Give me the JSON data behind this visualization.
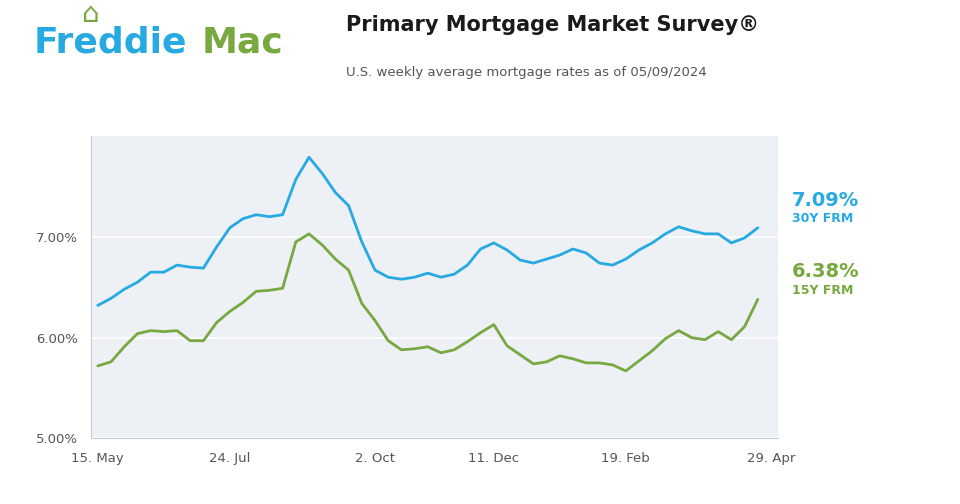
{
  "title": "Primary Mortgage Market Survey®",
  "subtitle": "U.S. weekly average mortgage rates as of 05/09/2024",
  "line_30y_color": "#27aae1",
  "line_15y_color": "#78a840",
  "label_30y_value": "7.09%",
  "label_30y_name": "30Y FRM",
  "label_15y_value": "6.38%",
  "label_15y_name": "15Y FRM",
  "ylim": [
    5.0,
    8.0
  ],
  "yticks": [
    5.0,
    6.0,
    7.0
  ],
  "x_tick_labels": [
    "15. May",
    "24. Jul",
    "2. Oct",
    "11. Dec",
    "19. Feb",
    "29. Apr"
  ],
  "x_tick_positions": [
    0,
    10,
    21,
    30,
    40,
    51
  ],
  "data_30y": [
    6.32,
    6.39,
    6.48,
    6.55,
    6.65,
    6.65,
    6.72,
    6.7,
    6.69,
    6.9,
    7.09,
    7.18,
    7.22,
    7.2,
    7.22,
    7.57,
    7.79,
    7.63,
    7.44,
    7.31,
    6.95,
    6.67,
    6.6,
    6.58,
    6.6,
    6.64,
    6.6,
    6.63,
    6.72,
    6.88,
    6.94,
    6.87,
    6.77,
    6.74,
    6.78,
    6.82,
    6.88,
    6.84,
    6.74,
    6.72,
    6.78,
    6.87,
    6.94,
    7.03,
    7.1,
    7.06,
    7.03,
    7.03,
    6.94,
    6.99,
    7.09
  ],
  "data_15y": [
    5.72,
    5.76,
    5.91,
    6.04,
    6.07,
    6.06,
    6.07,
    5.97,
    5.97,
    6.15,
    6.26,
    6.35,
    6.46,
    6.47,
    6.49,
    6.95,
    7.03,
    6.92,
    6.78,
    6.67,
    6.34,
    6.17,
    5.97,
    5.88,
    5.89,
    5.91,
    5.85,
    5.88,
    5.96,
    6.05,
    6.13,
    5.92,
    5.83,
    5.74,
    5.76,
    5.82,
    5.79,
    5.75,
    5.75,
    5.73,
    5.67,
    5.77,
    5.87,
    5.99,
    6.07,
    6.0,
    5.98,
    6.06,
    5.98,
    6.11,
    6.38
  ],
  "freddie_blue": "#27aae1",
  "freddie_green": "#78a840",
  "freddie_dark": "#231f20",
  "header_bg": "#ffffff",
  "plot_bg": "#edf0f5",
  "fig_bg": "#ffffff",
  "grid_color": "#ffffff",
  "bottom_line_color": "#c8cdd6"
}
